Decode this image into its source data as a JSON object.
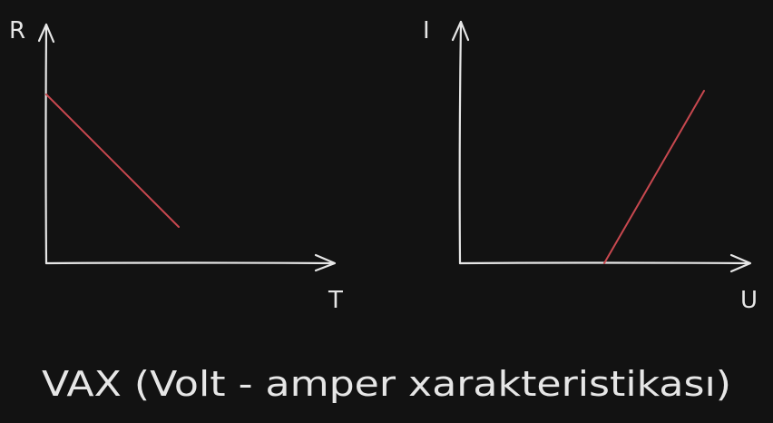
{
  "colors": {
    "background": "#121212",
    "axis": "#e6e6e6",
    "curve": "#c8484f",
    "text": "#e6e6e6"
  },
  "graphs": [
    {
      "y_label": "R",
      "x_label": "T",
      "line": "decreasing linear"
    },
    {
      "y_label": "I",
      "x_label": "U",
      "line": "increasing linear from a positive U intercept"
    }
  ],
  "caption": "VAX (Volt - amper xarakteristikası)"
}
